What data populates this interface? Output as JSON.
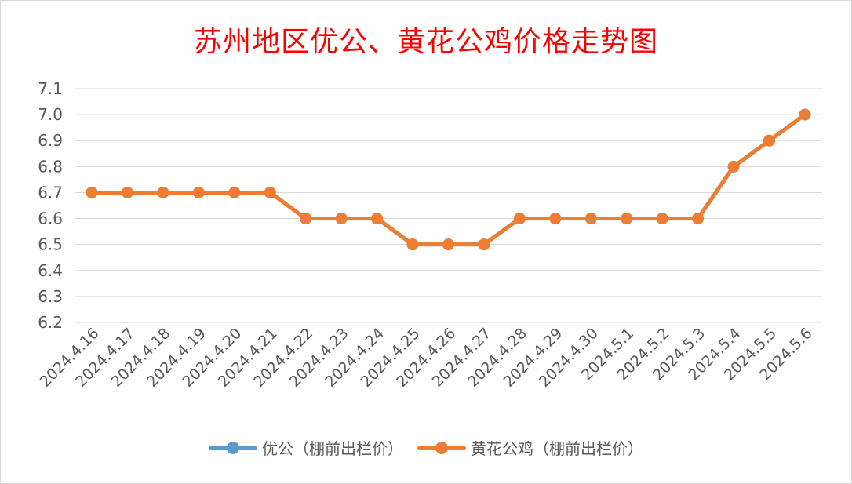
{
  "chart_data": {
    "type": "line",
    "title": "苏州地区优公、黄花公鸡价格走势图",
    "xlabel": "",
    "ylabel": "",
    "ylim": [
      6.2,
      7.1
    ],
    "y_ticks": [
      "7.1",
      "7.0",
      "6.9",
      "6.8",
      "6.7",
      "6.6",
      "6.5",
      "6.4",
      "6.3",
      "6.2"
    ],
    "grid": true,
    "legend_position": "bottom",
    "categories": [
      "2024.4.16",
      "2024.4.17",
      "2024.4.18",
      "2024.4.19",
      "2024.4.20",
      "2024.4.21",
      "2024.4.22",
      "2024.4.23",
      "2024.4.24",
      "2024.4.25",
      "2024.4.26",
      "2024.4.27",
      "2024.4.28",
      "2024.4.29",
      "2024.4.30",
      "2024.5.1",
      "2024.5.2",
      "2024.5.3",
      "2024.5.4",
      "2024.5.5",
      "2024.5.6"
    ],
    "series": [
      {
        "name": "优公（棚前出栏价）",
        "color": "#5b9bd5",
        "values": [
          6.7,
          6.7,
          6.7,
          6.7,
          6.7,
          6.7,
          6.6,
          6.6,
          6.6,
          6.5,
          6.5,
          6.5,
          6.6,
          6.6,
          6.6,
          6.6,
          6.6,
          6.6,
          6.8,
          6.9,
          7.0
        ]
      },
      {
        "name": "黄花公鸡（棚前出栏价）",
        "color": "#ed7d31",
        "values": [
          6.7,
          6.7,
          6.7,
          6.7,
          6.7,
          6.7,
          6.6,
          6.6,
          6.6,
          6.5,
          6.5,
          6.5,
          6.6,
          6.6,
          6.6,
          6.6,
          6.6,
          6.6,
          6.8,
          6.9,
          7.0
        ]
      }
    ]
  }
}
